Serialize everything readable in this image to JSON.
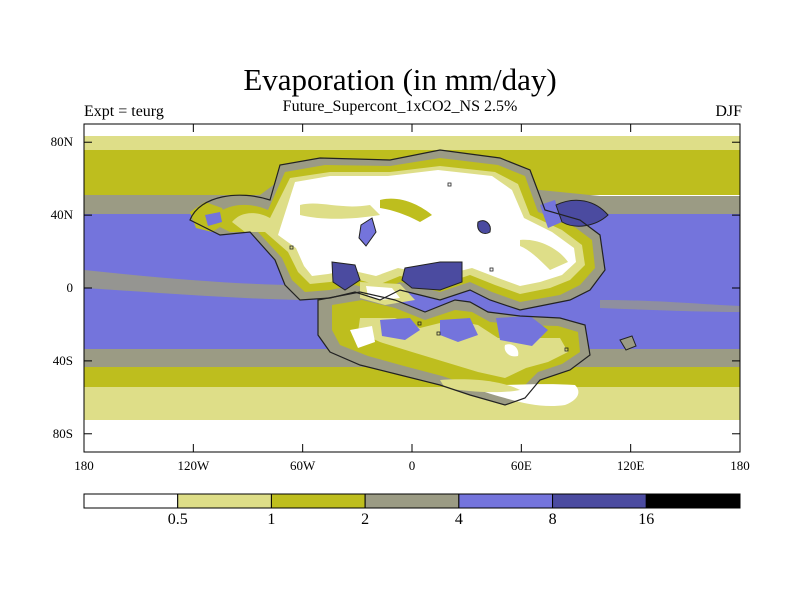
{
  "map": {
    "title": "Evaporation (in mm/day)",
    "subtitle": "Future_Supercont_1xCO2_NS 2.5%",
    "left_label": "Expt = teurg",
    "right_label": "DJF",
    "projection": "cylindrical-equidistant",
    "lon_range": [
      -180,
      180
    ],
    "lat_range": [
      -90,
      90
    ],
    "y_ticks": [
      {
        "lat": 80,
        "label": "80N"
      },
      {
        "lat": 40,
        "label": "40N"
      },
      {
        "lat": 0,
        "label": "0"
      },
      {
        "lat": -40,
        "label": "40S"
      },
      {
        "lat": -80,
        "label": "80S"
      }
    ],
    "x_ticks": [
      {
        "lon": -180,
        "label": "180"
      },
      {
        "lon": -120,
        "label": "120W"
      },
      {
        "lon": -60,
        "label": "60W"
      },
      {
        "lon": 0,
        "label": "0"
      },
      {
        "lon": 60,
        "label": "60E"
      },
      {
        "lon": 120,
        "label": "120E"
      },
      {
        "lon": 180,
        "label": "180"
      }
    ]
  },
  "colorbar": {
    "levels": [
      0.5,
      1,
      2,
      4,
      8,
      16
    ],
    "labels": [
      "0.5",
      "1",
      "2",
      "4",
      "8",
      "16"
    ],
    "colors": [
      "#ffffff",
      "#dede88",
      "#bebe1e",
      "#9b9b84",
      "#7474dc",
      "#4b4ba0",
      "#000000"
    ]
  }
}
